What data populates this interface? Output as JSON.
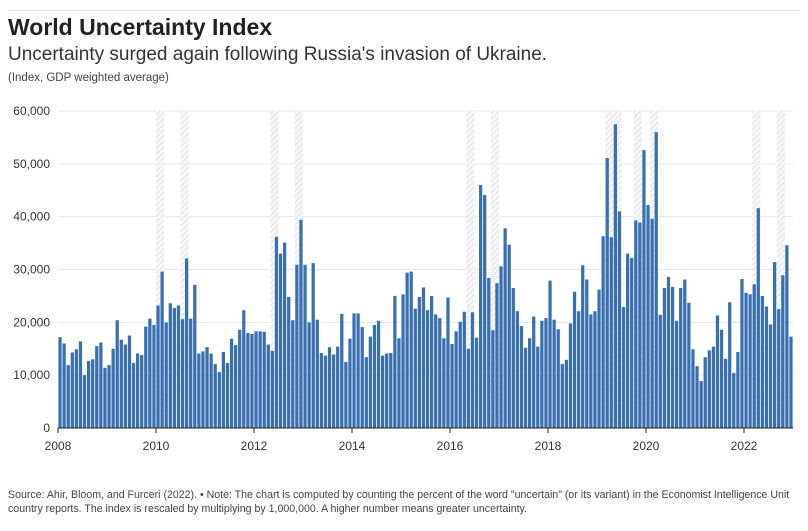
{
  "header": {
    "title": "World Uncertainty Index",
    "subtitle": "Uncertainty surged again following Russia's invasion of Ukraine.",
    "unit": "(Index, GDP weighted average)"
  },
  "footer": {
    "source": "Source: Ahir, Bloom, and Furceri (2022). • Note: The chart is computed by counting the percent of the word \"uncertain\" (or its variant) in the Economist Intelligence Unit country reports. The index is rescaled by multiplying by 1,000,000. A higher number means greater uncertainty."
  },
  "colors": {
    "bar": "#3a6fb0",
    "grid": "#e6e6e6",
    "highlight": "#d9d9d9"
  },
  "chart_data": {
    "type": "bar",
    "title": "World Uncertainty Index",
    "subtitle": "Uncertainty surged again following Russia's invasion of Ukraine.",
    "ylabel": "(Index, GDP weighted average)",
    "frequency": "monthly",
    "start": "2008-01",
    "end": "2022-12",
    "xlim": [
      2008,
      2023
    ],
    "ylim": [
      0,
      60000
    ],
    "yticks": [
      0,
      10000,
      20000,
      30000,
      40000,
      50000,
      60000
    ],
    "ytick_labels": [
      "0",
      "10,000",
      "20,000",
      "30,000",
      "40,000",
      "50,000",
      "60,000"
    ],
    "xticks": [
      2008,
      2010,
      2012,
      2014,
      2016,
      2018,
      2020,
      2022
    ],
    "xtick_labels": [
      "2008",
      "2010",
      "2012",
      "2014",
      "2016",
      "2018",
      "2020",
      "2022"
    ],
    "grid": true,
    "highlight_months": [
      "2010-01",
      "2010-02",
      "2010-07",
      "2010-08",
      "2012-05",
      "2012-06",
      "2012-11",
      "2012-12",
      "2016-05",
      "2016-06",
      "2016-11",
      "2016-12",
      "2019-03",
      "2019-04",
      "2019-05",
      "2019-06",
      "2019-10",
      "2019-11",
      "2020-02",
      "2020-03",
      "2022-03",
      "2022-04",
      "2022-09",
      "2022-10"
    ],
    "values": [
      17200,
      16000,
      11900,
      14300,
      14900,
      16400,
      10000,
      12700,
      13000,
      15500,
      16200,
      11400,
      11900,
      15000,
      20400,
      16700,
      15800,
      17500,
      12300,
      14100,
      13800,
      19200,
      20700,
      19500,
      23200,
      29600,
      20000,
      23600,
      22700,
      23200,
      20600,
      32100,
      20700,
      27100,
      14100,
      14500,
      15300,
      14100,
      12100,
      10600,
      14400,
      12300,
      16900,
      15700,
      18600,
      22300,
      18000,
      17800,
      18300,
      18300,
      18200,
      15800,
      14600,
      36200,
      33000,
      35100,
      24800,
      20400,
      30900,
      39400,
      30900,
      20000,
      31200,
      20500,
      14200,
      13700,
      15300,
      13900,
      15400,
      21600,
      12500,
      16900,
      21700,
      21700,
      19100,
      13400,
      17300,
      19500,
      20300,
      13700,
      14100,
      14200,
      25000,
      17000,
      25300,
      29400,
      29600,
      22600,
      24800,
      26600,
      22300,
      25000,
      21500,
      20800,
      17000,
      24700,
      15900,
      18300,
      20100,
      22000,
      15000,
      21900,
      17100,
      46000,
      44100,
      28400,
      18500,
      27400,
      30600,
      37800,
      34700,
      26500,
      22100,
      19300,
      15200,
      17000,
      21100,
      15400,
      20300,
      20800,
      27900,
      20500,
      18700,
      12100,
      12900,
      19800,
      25800,
      22100,
      30800,
      28100,
      21500,
      22100,
      26200,
      36300,
      51100,
      36100,
      57500,
      41000,
      22900,
      33000,
      32200,
      39300,
      38900,
      52600,
      42200,
      39600,
      56000,
      21400,
      26500,
      28600,
      26700,
      20300,
      26500,
      28100,
      23700,
      14900,
      11700,
      8900,
      13400,
      14700,
      15400,
      21300,
      18600,
      13100,
      23800,
      10400,
      14400,
      28200,
      25600,
      25300,
      27200,
      41600,
      25000,
      23000,
      19600,
      31400,
      22500,
      28900,
      34600,
      17300
    ]
  }
}
